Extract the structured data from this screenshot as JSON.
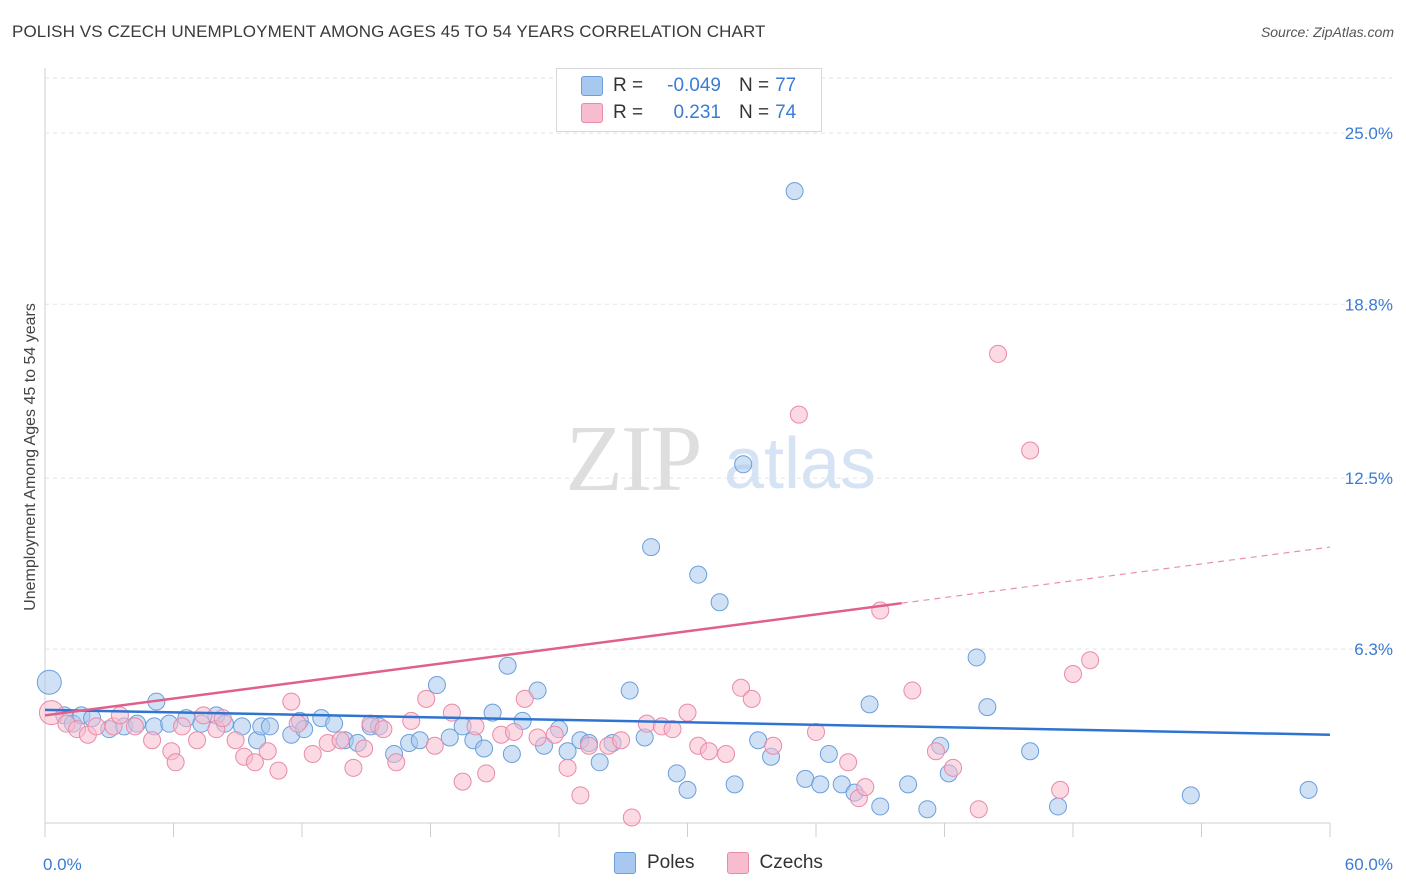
{
  "title": "POLISH VS CZECH UNEMPLOYMENT AMONG AGES 45 TO 54 YEARS CORRELATION CHART",
  "source": "Source: ZipAtlas.com",
  "watermark": {
    "zip": "ZIP",
    "atlas": "atlas"
  },
  "legend": [
    {
      "label": "R =",
      "r": "-0.049",
      "n_label": "N =",
      "n": "77",
      "color": "#a9c8ef",
      "border": "#6a9fdc"
    },
    {
      "label": "R =",
      "r": "0.231",
      "n_label": "N =",
      "n": "74",
      "color": "#f7bccd",
      "border": "#e98aa8"
    }
  ],
  "bottom_legend": [
    {
      "label": "Poles",
      "color": "#a9c8ef",
      "border": "#6a9fdc"
    },
    {
      "label": "Czechs",
      "color": "#f7bccd",
      "border": "#e98aa8"
    }
  ],
  "chart_data": {
    "type": "scatter",
    "title": "POLISH VS CZECH UNEMPLOYMENT AMONG AGES 45 TO 54 YEARS CORRELATION CHART",
    "xlabel": "",
    "ylabel": "Unemployment Among Ages 45 to 54 years",
    "xlim": [
      0,
      60
    ],
    "ylim": [
      0,
      27
    ],
    "x_tick_labels": [
      "0.0%",
      "60.0%"
    ],
    "y_ticks": [
      6.3,
      12.5,
      18.8,
      25.0
    ],
    "y_tick_labels": [
      "6.3%",
      "12.5%",
      "18.8%",
      "25.0%"
    ],
    "grid": true,
    "series": [
      {
        "name": "Poles",
        "color": "#a9c8ef",
        "stroke": "#6a9fdc",
        "trend": {
          "x": [
            0,
            60
          ],
          "y": [
            4.1,
            3.2
          ],
          "color": "#2f74d0"
        },
        "points": [
          [
            0.2,
            5.1
          ],
          [
            0.9,
            3.9
          ],
          [
            1.3,
            3.6
          ],
          [
            1.7,
            3.9
          ],
          [
            2.2,
            3.8
          ],
          [
            3.0,
            3.4
          ],
          [
            3.7,
            3.5
          ],
          [
            4.3,
            3.6
          ],
          [
            5.1,
            3.5
          ],
          [
            5.2,
            4.4
          ],
          [
            5.8,
            3.6
          ],
          [
            6.6,
            3.8
          ],
          [
            7.3,
            3.6
          ],
          [
            8.0,
            3.9
          ],
          [
            8.4,
            3.6
          ],
          [
            9.2,
            3.5
          ],
          [
            9.9,
            3.0
          ],
          [
            10.1,
            3.5
          ],
          [
            10.5,
            3.5
          ],
          [
            11.5,
            3.2
          ],
          [
            11.9,
            3.7
          ],
          [
            12.1,
            3.4
          ],
          [
            12.9,
            3.8
          ],
          [
            13.5,
            3.6
          ],
          [
            14.0,
            3.0
          ],
          [
            14.6,
            2.9
          ],
          [
            15.2,
            3.5
          ],
          [
            15.6,
            3.5
          ],
          [
            16.3,
            2.5
          ],
          [
            17.0,
            2.9
          ],
          [
            17.5,
            3.0
          ],
          [
            18.3,
            5.0
          ],
          [
            18.9,
            3.1
          ],
          [
            19.5,
            3.5
          ],
          [
            20.0,
            3.0
          ],
          [
            20.5,
            2.7
          ],
          [
            20.9,
            4.0
          ],
          [
            21.6,
            5.7
          ],
          [
            21.8,
            2.5
          ],
          [
            22.3,
            3.7
          ],
          [
            23.0,
            4.8
          ],
          [
            23.3,
            2.8
          ],
          [
            24.0,
            3.4
          ],
          [
            24.4,
            2.6
          ],
          [
            25.0,
            3.0
          ],
          [
            25.4,
            2.9
          ],
          [
            25.9,
            2.2
          ],
          [
            26.5,
            2.9
          ],
          [
            27.3,
            4.8
          ],
          [
            28.0,
            3.1
          ],
          [
            28.3,
            10.0
          ],
          [
            29.5,
            1.8
          ],
          [
            30.0,
            1.2
          ],
          [
            30.5,
            9.0
          ],
          [
            31.5,
            8.0
          ],
          [
            32.2,
            1.4
          ],
          [
            32.6,
            13.0
          ],
          [
            33.3,
            3.0
          ],
          [
            33.9,
            2.4
          ],
          [
            35.0,
            22.9
          ],
          [
            35.5,
            1.6
          ],
          [
            36.2,
            1.4
          ],
          [
            36.6,
            2.5
          ],
          [
            37.2,
            1.4
          ],
          [
            37.8,
            1.1
          ],
          [
            38.5,
            4.3
          ],
          [
            39.0,
            0.6
          ],
          [
            40.3,
            1.4
          ],
          [
            41.2,
            0.5
          ],
          [
            41.8,
            2.8
          ],
          [
            42.2,
            1.8
          ],
          [
            43.5,
            6.0
          ],
          [
            44.0,
            4.2
          ],
          [
            46.0,
            2.6
          ],
          [
            47.3,
            0.6
          ],
          [
            53.5,
            1.0
          ],
          [
            59.0,
            1.2
          ]
        ]
      },
      {
        "name": "Czechs",
        "color": "#f7bccd",
        "stroke": "#e98aa8",
        "trend": {
          "x": [
            0,
            60
          ],
          "y": [
            3.9,
            10.0
          ],
          "solid_until": 40.0,
          "color": "#e0608a"
        },
        "points": [
          [
            0.3,
            4.0
          ],
          [
            1.0,
            3.6
          ],
          [
            1.5,
            3.4
          ],
          [
            2.0,
            3.2
          ],
          [
            2.4,
            3.5
          ],
          [
            3.2,
            3.5
          ],
          [
            3.5,
            3.9
          ],
          [
            4.2,
            3.5
          ],
          [
            5.0,
            3.0
          ],
          [
            5.9,
            2.6
          ],
          [
            6.1,
            2.2
          ],
          [
            6.4,
            3.5
          ],
          [
            7.1,
            3.0
          ],
          [
            7.4,
            3.9
          ],
          [
            8.0,
            3.4
          ],
          [
            8.3,
            3.8
          ],
          [
            8.9,
            3.0
          ],
          [
            9.3,
            2.4
          ],
          [
            9.8,
            2.2
          ],
          [
            10.4,
            2.6
          ],
          [
            10.9,
            1.9
          ],
          [
            11.5,
            4.4
          ],
          [
            11.8,
            3.6
          ],
          [
            12.5,
            2.5
          ],
          [
            13.2,
            2.9
          ],
          [
            13.8,
            3.0
          ],
          [
            14.4,
            2.0
          ],
          [
            14.9,
            2.7
          ],
          [
            15.2,
            3.6
          ],
          [
            15.8,
            3.4
          ],
          [
            16.4,
            2.2
          ],
          [
            17.1,
            3.7
          ],
          [
            17.8,
            4.5
          ],
          [
            18.2,
            2.8
          ],
          [
            19.0,
            4.0
          ],
          [
            19.5,
            1.5
          ],
          [
            20.1,
            3.5
          ],
          [
            20.6,
            1.8
          ],
          [
            21.3,
            3.2
          ],
          [
            21.9,
            3.3
          ],
          [
            22.4,
            4.5
          ],
          [
            23.0,
            3.1
          ],
          [
            23.8,
            3.2
          ],
          [
            24.4,
            2.0
          ],
          [
            25.0,
            1.0
          ],
          [
            25.4,
            2.8
          ],
          [
            26.3,
            2.8
          ],
          [
            26.9,
            3.0
          ],
          [
            27.4,
            0.2
          ],
          [
            28.1,
            3.6
          ],
          [
            28.8,
            3.5
          ],
          [
            29.3,
            3.4
          ],
          [
            30.0,
            4.0
          ],
          [
            30.5,
            2.8
          ],
          [
            31.0,
            2.6
          ],
          [
            31.8,
            2.5
          ],
          [
            32.5,
            4.9
          ],
          [
            33.0,
            4.5
          ],
          [
            34.0,
            2.8
          ],
          [
            35.2,
            14.8
          ],
          [
            36.0,
            3.3
          ],
          [
            37.5,
            2.2
          ],
          [
            38.0,
            0.9
          ],
          [
            38.3,
            1.3
          ],
          [
            39.0,
            7.7
          ],
          [
            40.5,
            4.8
          ],
          [
            41.6,
            2.6
          ],
          [
            42.4,
            2.0
          ],
          [
            43.6,
            0.5
          ],
          [
            44.5,
            17.0
          ],
          [
            46.0,
            13.5
          ],
          [
            47.4,
            1.2
          ],
          [
            48.0,
            5.4
          ],
          [
            48.8,
            5.9
          ]
        ]
      }
    ]
  }
}
